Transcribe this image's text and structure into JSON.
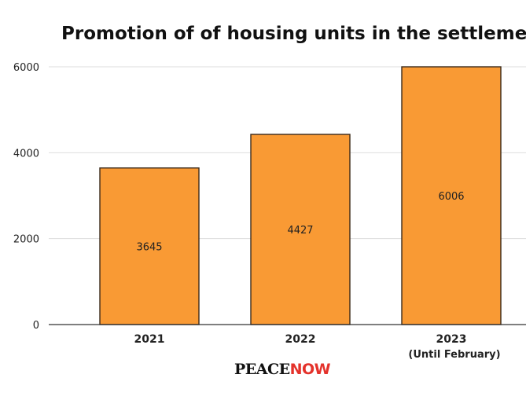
{
  "chart_data": {
    "type": "bar",
    "title": "Promotion of of housing units in the settlements",
    "categories": [
      "2021",
      "2022",
      "2023"
    ],
    "category_sublabels": [
      "",
      "",
      "(Until February)"
    ],
    "values": [
      3645,
      4427,
      6006
    ],
    "data_labels": [
      "3645",
      "4427",
      "6006"
    ],
    "ylim": [
      0,
      6000
    ],
    "yticks": [
      "0",
      "2000",
      "4000",
      "6000"
    ],
    "grid": true,
    "legend": "none",
    "bar_color": "#f99a34",
    "bar_edge_color": "#3b2a1a"
  },
  "logo": {
    "part1": "PEACE",
    "part2": "NOW",
    "part2_color": "#e4322b"
  }
}
